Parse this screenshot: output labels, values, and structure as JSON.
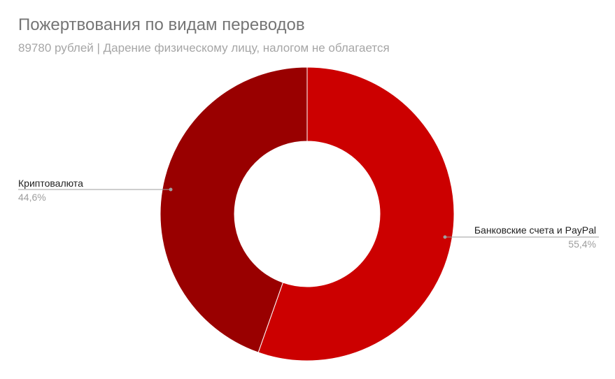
{
  "chart_data": {
    "type": "pie",
    "variant": "donut",
    "title": "Пожертвования по видам переводов",
    "subtitle": "89780 рублей | Дарение физическому лицу, налогом не облагается",
    "slices": [
      {
        "label": "Банковские счета и PayPal",
        "value": 55.4,
        "percent_label": "55,4%",
        "color": "#cc0000"
      },
      {
        "label": "Криптовалюта",
        "value": 44.6,
        "percent_label": "44,6%",
        "color": "#990000"
      }
    ],
    "legend": "none"
  }
}
